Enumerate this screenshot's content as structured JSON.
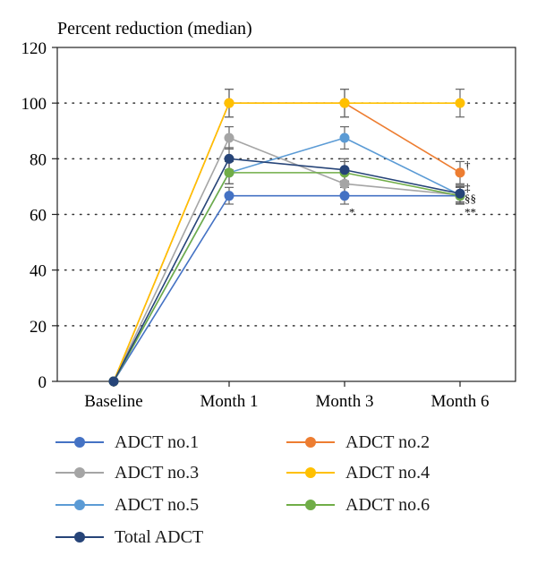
{
  "chart_data": {
    "type": "line",
    "title": "Percent reduction (median)",
    "xlabel": "",
    "ylabel": "",
    "categories": [
      "Baseline",
      "Month 1",
      "Month 3",
      "Month 6"
    ],
    "ylim": [
      0,
      120
    ],
    "yticks": [
      0,
      20,
      40,
      60,
      80,
      100,
      120
    ],
    "grid": "dotted horizontal",
    "legend_position": "bottom",
    "series": [
      {
        "name": "ADCT no.1",
        "color": "#4472C4",
        "values": [
          0,
          66.7,
          66.7,
          66.7
        ],
        "error": [
          0,
          3,
          3,
          3
        ]
      },
      {
        "name": "ADCT no.2",
        "color": "#ED7D31",
        "values": [
          0,
          100,
          100,
          75
        ],
        "error": [
          0,
          5,
          5,
          4
        ]
      },
      {
        "name": "ADCT no.3",
        "color": "#A5A5A5",
        "values": [
          0,
          87.5,
          71,
          67
        ],
        "error": [
          0,
          4,
          4,
          3
        ]
      },
      {
        "name": "ADCT no.4",
        "color": "#FFC000",
        "values": [
          0,
          100,
          100,
          100
        ],
        "error": [
          0,
          5,
          5,
          5
        ]
      },
      {
        "name": "ADCT no.5",
        "color": "#5B9BD5",
        "values": [
          0,
          75,
          87.5,
          67
        ],
        "error": [
          0,
          4,
          4,
          3
        ]
      },
      {
        "name": "ADCT no.6",
        "color": "#70AD47",
        "values": [
          0,
          75,
          75,
          66.7
        ],
        "error": [
          0,
          4,
          4,
          3
        ]
      },
      {
        "name": "Total ADCT",
        "color": "#264478",
        "values": [
          0,
          80,
          76,
          67.5
        ],
        "error": [
          0,
          4,
          4,
          3
        ]
      }
    ],
    "annotations": [
      {
        "text": "*",
        "x": "Month 3",
        "y": 61
      },
      {
        "text": "†",
        "x": "Month 6",
        "y": 78
      },
      {
        "text": "‡",
        "x": "Month 6",
        "y": 70
      },
      {
        "text": "§§",
        "x": "Month 6",
        "y": 66
      },
      {
        "text": "**",
        "x": "Month 6",
        "y": 61
      }
    ]
  }
}
